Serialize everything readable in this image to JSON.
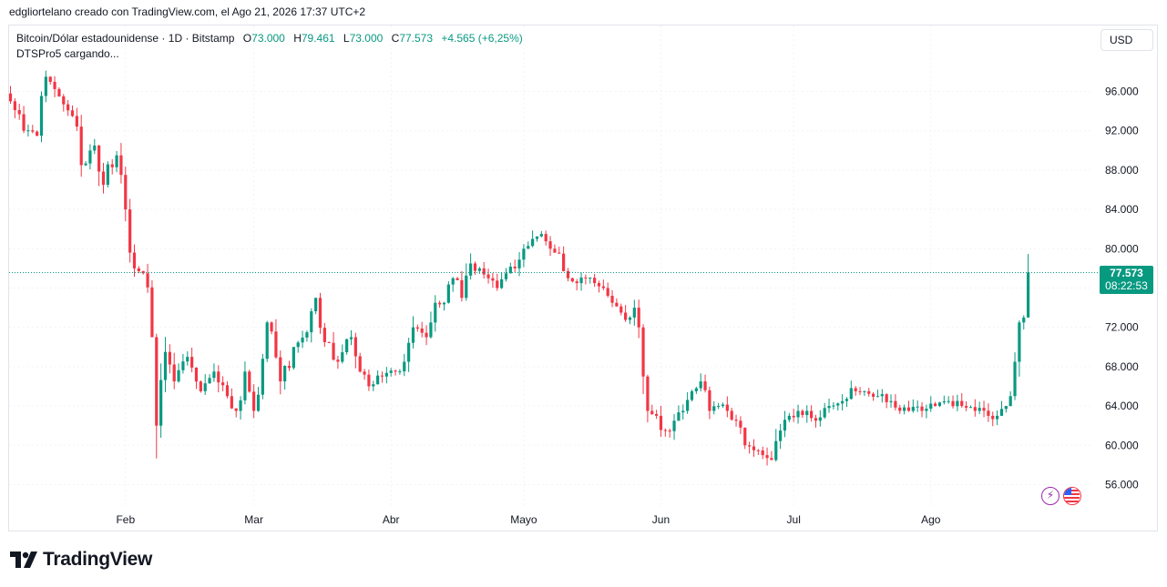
{
  "header": {
    "attribution": "edgliortelano creado con TradingView.com, el Ago 21, 2026 17:37 UTC+2"
  },
  "legend": {
    "symbol": "Bitcoin/Dólar estadounidense · 1D · Bitstamp",
    "open_label": "O",
    "open": "73.000",
    "high_label": "H",
    "high": "79.461",
    "low_label": "L",
    "low": "73.000",
    "close_label": "C",
    "close": "77.573",
    "change": "+4.565 (+6,25%)",
    "indicator": "DTSPro5 cargando..."
  },
  "currency": "USD",
  "last_price": {
    "price": "77.573",
    "countdown": "08:22:53"
  },
  "brand": {
    "name": "TradingView"
  },
  "colors": {
    "up": "#089981",
    "down": "#f23645",
    "grid": "#f0f3fa",
    "axis_text": "#131722"
  },
  "icons": {
    "flash": "lightning-icon",
    "flag": "us-flag-icon"
  },
  "chart_data": {
    "type": "candlestick",
    "price_axis": {
      "min": 53000,
      "max": 101000,
      "ticks": [
        56000,
        60000,
        64000,
        68000,
        72000,
        76000,
        80000,
        84000,
        88000,
        92000,
        96000
      ],
      "tick_labels": [
        "56.000",
        "60.000",
        "64.000",
        "68.000",
        "72.000",
        "76.000",
        "80.000",
        "84.000",
        "88.000",
        "92.000",
        "96.000"
      ]
    },
    "time_axis": {
      "labels": [
        "Feb",
        "Mar",
        "Abr",
        "Mayo",
        "Jun",
        "Jul",
        "Ago"
      ],
      "label_bar_index": [
        26,
        55,
        86,
        116,
        147,
        177,
        208
      ]
    },
    "last_close": 77573,
    "grid": true,
    "anchors": [
      [
        0,
        95000
      ],
      [
        3,
        92000
      ],
      [
        6,
        91500
      ],
      [
        8,
        97500
      ],
      [
        11,
        95500
      ],
      [
        14,
        93500
      ],
      [
        16,
        88500
      ],
      [
        19,
        90500
      ],
      [
        21,
        86500
      ],
      [
        24,
        89500
      ],
      [
        26,
        84000
      ],
      [
        28,
        78000
      ],
      [
        30,
        77500
      ],
      [
        32,
        71000
      ],
      [
        33,
        62000
      ],
      [
        35,
        69500
      ],
      [
        37,
        66500
      ],
      [
        40,
        69000
      ],
      [
        43,
        65500
      ],
      [
        46,
        67500
      ],
      [
        49,
        65000
      ],
      [
        51,
        63500
      ],
      [
        53,
        67500
      ],
      [
        55,
        63500
      ],
      [
        58,
        72500
      ],
      [
        61,
        66500
      ],
      [
        64,
        70000
      ],
      [
        67,
        71500
      ],
      [
        69,
        75000
      ],
      [
        71,
        70500
      ],
      [
        74,
        68500
      ],
      [
        77,
        71000
      ],
      [
        79,
        67500
      ],
      [
        81,
        66000
      ],
      [
        84,
        67000
      ],
      [
        87,
        67500
      ],
      [
        89,
        68500
      ],
      [
        91,
        72000
      ],
      [
        94,
        71000
      ],
      [
        96,
        74500
      ],
      [
        98,
        74500
      ],
      [
        100,
        77000
      ],
      [
        102,
        75000
      ],
      [
        104,
        78500
      ],
      [
        106,
        78000
      ],
      [
        108,
        77000
      ],
      [
        110,
        76000
      ],
      [
        112,
        77500
      ],
      [
        114,
        78000
      ],
      [
        116,
        80000
      ],
      [
        118,
        81000
      ],
      [
        120,
        81500
      ],
      [
        122,
        80000
      ],
      [
        124,
        79500
      ],
      [
        126,
        77000
      ],
      [
        128,
        76500
      ],
      [
        130,
        77000
      ],
      [
        132,
        76500
      ],
      [
        134,
        76000
      ],
      [
        136,
        74500
      ],
      [
        138,
        73500
      ],
      [
        140,
        73000
      ],
      [
        141,
        74000
      ],
      [
        142,
        72000
      ],
      [
        143,
        67000
      ],
      [
        144,
        63500
      ],
      [
        146,
        63000
      ],
      [
        148,
        61500
      ],
      [
        150,
        62500
      ],
      [
        152,
        63500
      ],
      [
        154,
        65500
      ],
      [
        156,
        66500
      ],
      [
        158,
        63500
      ],
      [
        160,
        64000
      ],
      [
        162,
        63500
      ],
      [
        164,
        62500
      ],
      [
        166,
        60000
      ],
      [
        168,
        59500
      ],
      [
        170,
        59000
      ],
      [
        172,
        58500
      ],
      [
        174,
        61500
      ],
      [
        176,
        63000
      ],
      [
        178,
        63500
      ],
      [
        180,
        63500
      ],
      [
        182,
        62500
      ],
      [
        185,
        64000
      ],
      [
        188,
        64500
      ],
      [
        191,
        65500
      ],
      [
        193,
        65500
      ],
      [
        196,
        65000
      ],
      [
        199,
        64500
      ],
      [
        201,
        63500
      ],
      [
        203,
        63500
      ],
      [
        206,
        63500
      ],
      [
        209,
        64000
      ],
      [
        212,
        64500
      ],
      [
        215,
        64000
      ],
      [
        218,
        63500
      ],
      [
        221,
        63000
      ],
      [
        223,
        63000
      ],
      [
        225,
        64000
      ],
      [
        226,
        65000
      ],
      [
        227,
        68500
      ],
      [
        228,
        72500
      ],
      [
        229,
        73000
      ],
      [
        230,
        77573
      ]
    ],
    "final_candle": {
      "open": 73000,
      "high": 79461,
      "low": 73000,
      "close": 77573
    }
  }
}
